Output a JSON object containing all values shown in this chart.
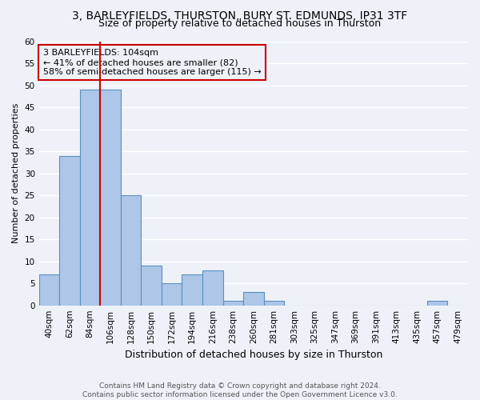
{
  "title": "3, BARLEYFIELDS, THURSTON, BURY ST. EDMUNDS, IP31 3TF",
  "subtitle": "Size of property relative to detached houses in Thurston",
  "xlabel": "Distribution of detached houses by size in Thurston",
  "ylabel": "Number of detached properties",
  "footer_line1": "Contains HM Land Registry data © Crown copyright and database right 2024.",
  "footer_line2": "Contains public sector information licensed under the Open Government Licence v3.0.",
  "bin_labels": [
    "40sqm",
    "62sqm",
    "84sqm",
    "106sqm",
    "128sqm",
    "150sqm",
    "172sqm",
    "194sqm",
    "216sqm",
    "238sqm",
    "260sqm",
    "281sqm",
    "303sqm",
    "325sqm",
    "347sqm",
    "369sqm",
    "391sqm",
    "413sqm",
    "435sqm",
    "457sqm",
    "479sqm"
  ],
  "bar_values": [
    7,
    34,
    49,
    49,
    25,
    9,
    5,
    7,
    8,
    1,
    3,
    1,
    0,
    0,
    0,
    0,
    0,
    0,
    0,
    1,
    0
  ],
  "bar_color": "#aec6e8",
  "bar_edge_color": "#5a8fc0",
  "vline_x_index": 3,
  "vline_color": "#cc0000",
  "annotation_box_text": "3 BARLEYFIELDS: 104sqm\n← 41% of detached houses are smaller (82)\n58% of semi-detached houses are larger (115) →",
  "annotation_box_color": "#cc0000",
  "ylim": [
    0,
    60
  ],
  "yticks": [
    0,
    5,
    10,
    15,
    20,
    25,
    30,
    35,
    40,
    45,
    50,
    55,
    60
  ],
  "bg_color": "#eef2f8",
  "grid_color": "#ffffff",
  "title_fontsize": 10,
  "subtitle_fontsize": 9,
  "ylabel_fontsize": 8,
  "xlabel_fontsize": 9,
  "tick_fontsize": 7.5,
  "annotation_fontsize": 8
}
